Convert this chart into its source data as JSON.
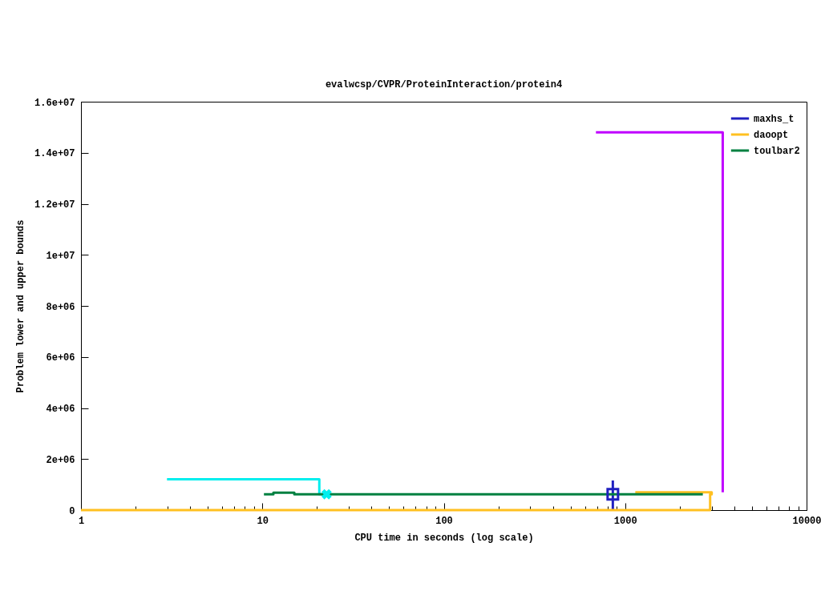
{
  "chart_data": {
    "type": "step",
    "title": "evalwcsp/CVPR/ProteinInteraction/protein4",
    "xlabel": "CPU time in seconds (log scale)",
    "ylabel": "Problem lower and upper bounds",
    "log": "x",
    "legend": "top right",
    "xlim": [
      1,
      10000
    ],
    "xticks": [
      1,
      {
        "value": 2,
        "label": null
      },
      {
        "value": 3,
        "label": null
      },
      {
        "value": 4,
        "label": null
      },
      {
        "value": 5,
        "label": null
      },
      {
        "value": 6,
        "label": null
      },
      {
        "value": 7,
        "label": null
      },
      {
        "value": 8,
        "label": null
      },
      {
        "value": 9,
        "label": null
      },
      10,
      {
        "value": 20,
        "label": null
      },
      {
        "value": 30,
        "label": null
      },
      {
        "value": 40,
        "label": null
      },
      {
        "value": 50,
        "label": null
      },
      {
        "value": 60,
        "label": null
      },
      {
        "value": 70,
        "label": null
      },
      {
        "value": 80,
        "label": null
      },
      {
        "value": 90,
        "label": null
      },
      100,
      {
        "value": 200,
        "label": null
      },
      {
        "value": 300,
        "label": null
      },
      {
        "value": 400,
        "label": null
      },
      {
        "value": 500,
        "label": null
      },
      {
        "value": 600,
        "label": null
      },
      {
        "value": 700,
        "label": null
      },
      {
        "value": 800,
        "label": null
      },
      {
        "value": 900,
        "label": null
      },
      1000,
      {
        "value": 2000,
        "label": null
      },
      {
        "value": 3000,
        "label": null
      },
      {
        "value": 4000,
        "label": null
      },
      {
        "value": 5000,
        "label": null
      },
      {
        "value": 6000,
        "label": null
      },
      {
        "value": 7000,
        "label": null
      },
      {
        "value": 8000,
        "label": null
      },
      {
        "value": 9000,
        "label": null
      },
      10000
    ],
    "ylim": [
      0,
      16000000
    ],
    "yticks": [
      0,
      {
        "value": 2000000,
        "label": "2e+06"
      },
      {
        "value": 4000000,
        "label": "4e+06"
      },
      {
        "value": 6000000,
        "label": "6e+06"
      },
      {
        "value": 8000000,
        "label": "8e+06"
      },
      {
        "value": 10000000,
        "label": "1e+07"
      },
      {
        "value": 12000000,
        "label": "1.2e+07"
      },
      {
        "value": 14000000,
        "label": "1.4e+07"
      },
      {
        "value": 16000000,
        "label": "1.6e+07"
      }
    ],
    "series": [
      {
        "color": "#c000ff",
        "x": [
          690,
          3450
        ],
        "values": [
          14800000,
          700000
        ]
      },
      {
        "color": "#00eeee",
        "x": [
          2.98,
          20.6,
          22.6
        ],
        "values": [
          1210000,
          620000,
          620000
        ]
      },
      {
        "name": "maxhs_t",
        "color": "#2020c0",
        "x": [
          855,
          855
        ],
        "values": [
          0,
          1160000
        ]
      },
      {
        "name": "daoopt",
        "color": "#ffc020",
        "x": [
          1137,
          3000,
          2940,
          1
        ],
        "values": [
          700000,
          620000,
          0,
          0
        ]
      },
      {
        "name": "toulbar2",
        "color": "#008040",
        "x": [
          10.2,
          11.5,
          15,
          2680
        ],
        "values": [
          620000,
          680000,
          620000,
          620000
        ]
      },
      {
        "type": "scatter",
        "color": "#00eeee",
        "marker": "cross",
        "x": [
          22.6
        ],
        "values": [
          620000
        ]
      },
      {
        "type": "scatter",
        "color": "#2020c0",
        "marker": "square",
        "x": [
          855
        ],
        "values": [
          620000
        ]
      }
    ]
  }
}
